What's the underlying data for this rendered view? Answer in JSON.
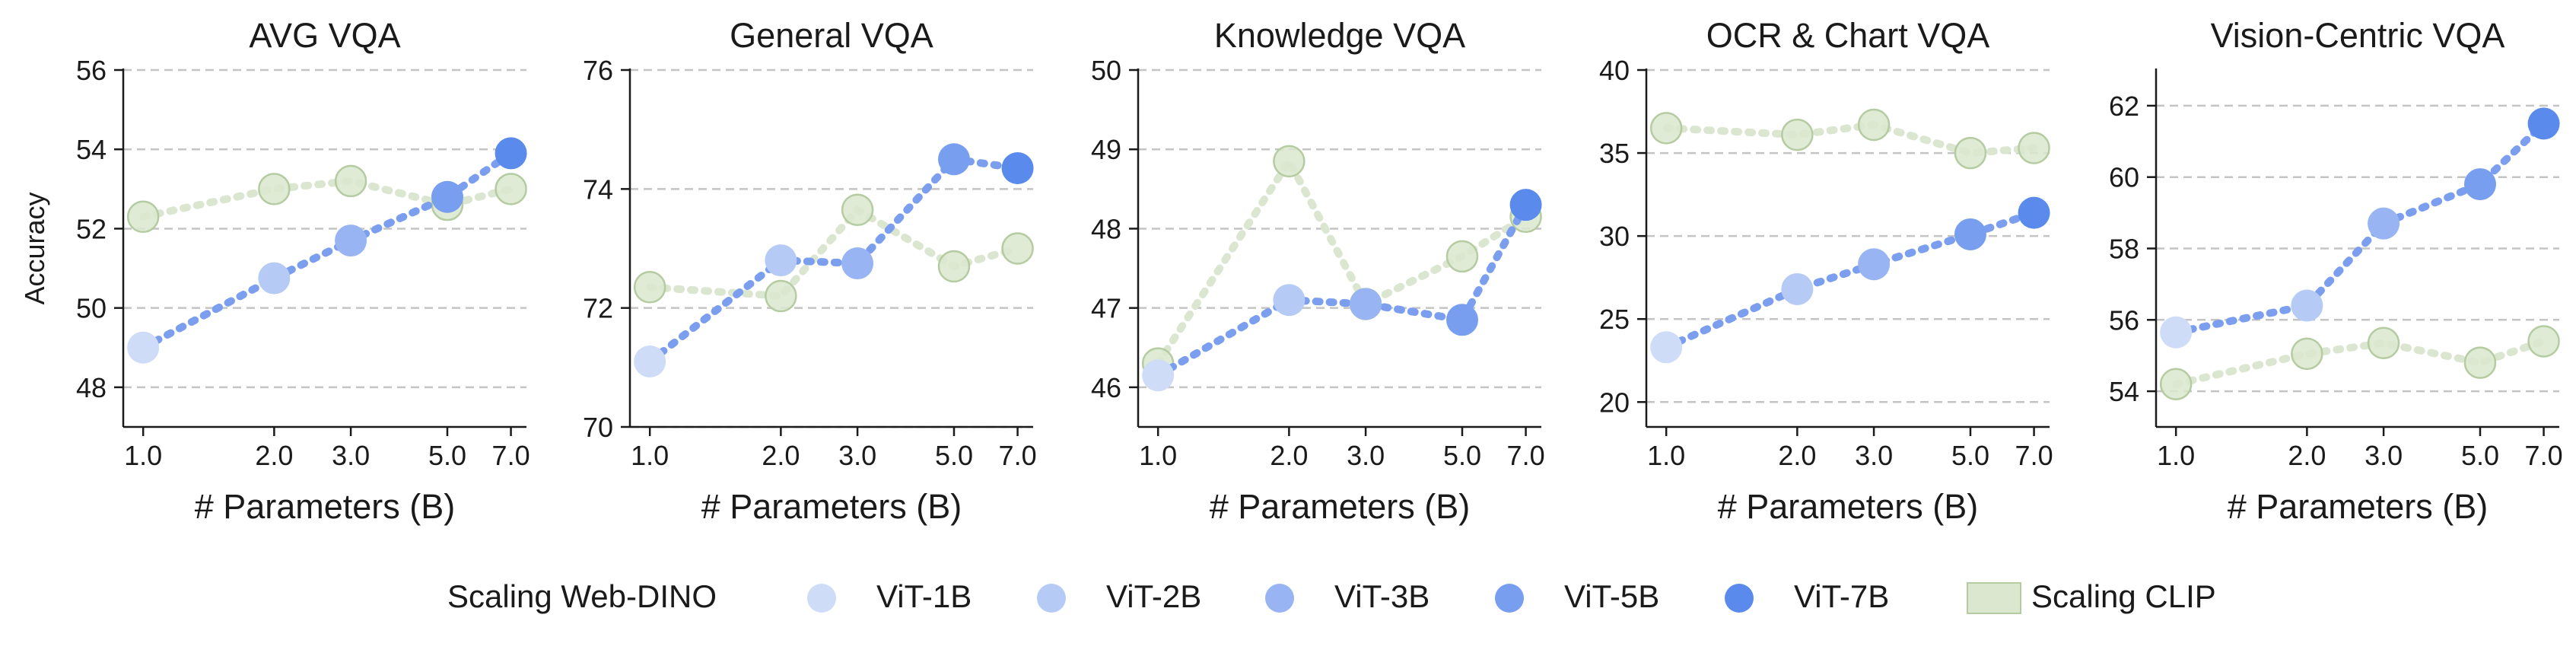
{
  "chart_data": [
    {
      "type": "line",
      "title": "AVG VQA",
      "xlabel": "# Parameters (B)",
      "ylabel": "Accuracy",
      "x_scale": "log",
      "xlim": [
        0.9,
        7.6
      ],
      "ylim": [
        47,
        56
      ],
      "xticks": [
        1.0,
        2.0,
        3.0,
        5.0,
        7.0
      ],
      "xtick_labels": [
        "1.0",
        "2.0",
        "3.0",
        "5.0",
        "7.0"
      ],
      "yticks": [
        48,
        50,
        52,
        54,
        56
      ],
      "ytick_labels": [
        "48",
        "50",
        "52",
        "54",
        "56"
      ],
      "grid": "y-dashed",
      "series": [
        {
          "name": "Scaling Web-DINO",
          "x": [
            1.0,
            2.0,
            3.0,
            5.0,
            7.0
          ],
          "y": [
            49.0,
            50.75,
            51.7,
            52.8,
            53.9
          ]
        },
        {
          "name": "Scaling CLIP",
          "x": [
            1.0,
            2.0,
            3.0,
            5.0,
            7.0
          ],
          "y": [
            52.3,
            53.0,
            53.2,
            52.6,
            53.0
          ]
        }
      ]
    },
    {
      "type": "line",
      "title": "General VQA",
      "xlabel": "# Parameters (B)",
      "ylabel": "",
      "x_scale": "log",
      "xlim": [
        0.9,
        7.6
      ],
      "ylim": [
        70,
        76
      ],
      "xticks": [
        1.0,
        2.0,
        3.0,
        5.0,
        7.0
      ],
      "xtick_labels": [
        "1.0",
        "2.0",
        "3.0",
        "5.0",
        "7.0"
      ],
      "yticks": [
        70,
        72,
        74,
        76
      ],
      "ytick_labels": [
        "70",
        "72",
        "74",
        "76"
      ],
      "grid": "y-dashed",
      "series": [
        {
          "name": "Scaling Web-DINO",
          "x": [
            1.0,
            2.0,
            3.0,
            5.0,
            7.0
          ],
          "y": [
            71.1,
            72.8,
            72.75,
            74.5,
            74.35
          ]
        },
        {
          "name": "Scaling CLIP",
          "x": [
            1.0,
            2.0,
            3.0,
            5.0,
            7.0
          ],
          "y": [
            72.35,
            72.2,
            73.65,
            72.7,
            73.0
          ]
        }
      ]
    },
    {
      "type": "line",
      "title": "Knowledge VQA",
      "xlabel": "# Parameters (B)",
      "ylabel": "",
      "x_scale": "log",
      "xlim": [
        0.9,
        7.6
      ],
      "ylim": [
        45.5,
        50
      ],
      "xticks": [
        1.0,
        2.0,
        3.0,
        5.0,
        7.0
      ],
      "xtick_labels": [
        "1.0",
        "2.0",
        "3.0",
        "5.0",
        "7.0"
      ],
      "yticks": [
        46,
        47,
        48,
        49,
        50
      ],
      "ytick_labels": [
        "46",
        "47",
        "48",
        "49",
        "50"
      ],
      "grid": "y-dashed",
      "series": [
        {
          "name": "Scaling Web-DINO",
          "x": [
            1.0,
            2.0,
            3.0,
            5.0,
            7.0
          ],
          "y": [
            46.15,
            47.1,
            47.05,
            46.85,
            48.3
          ]
        },
        {
          "name": "Scaling CLIP",
          "x": [
            1.0,
            2.0,
            3.0,
            5.0,
            7.0
          ],
          "y": [
            46.3,
            48.85,
            47.05,
            47.65,
            48.15
          ]
        }
      ]
    },
    {
      "type": "line",
      "title": "OCR & Chart VQA",
      "xlabel": "# Parameters (B)",
      "ylabel": "",
      "x_scale": "log",
      "xlim": [
        0.9,
        7.6
      ],
      "ylim": [
        18.5,
        40
      ],
      "xticks": [
        1.0,
        2.0,
        3.0,
        5.0,
        7.0
      ],
      "xtick_labels": [
        "1.0",
        "2.0",
        "3.0",
        "5.0",
        "7.0"
      ],
      "yticks": [
        20,
        25,
        30,
        35,
        40
      ],
      "ytick_labels": [
        "20",
        "25",
        "30",
        "35",
        "40"
      ],
      "grid": "y-dashed",
      "series": [
        {
          "name": "Scaling Web-DINO",
          "x": [
            1.0,
            2.0,
            3.0,
            5.0,
            7.0
          ],
          "y": [
            23.3,
            26.8,
            28.3,
            30.1,
            31.4
          ]
        },
        {
          "name": "Scaling CLIP",
          "x": [
            1.0,
            2.0,
            3.0,
            5.0,
            7.0
          ],
          "y": [
            36.5,
            36.1,
            36.7,
            35.0,
            35.3
          ]
        }
      ]
    },
    {
      "type": "line",
      "title": "Vision-Centric VQA",
      "xlabel": "# Parameters (B)",
      "ylabel": "",
      "x_scale": "log",
      "xlim": [
        0.9,
        7.6
      ],
      "ylim": [
        53,
        63
      ],
      "xticks": [
        1.0,
        2.0,
        3.0,
        5.0,
        7.0
      ],
      "xtick_labels": [
        "1.0",
        "2.0",
        "3.0",
        "5.0",
        "7.0"
      ],
      "yticks": [
        54,
        56,
        58,
        60,
        62
      ],
      "ytick_labels": [
        "54",
        "56",
        "58",
        "60",
        "62"
      ],
      "grid": "y-dashed",
      "series": [
        {
          "name": "Scaling Web-DINO",
          "x": [
            1.0,
            2.0,
            3.0,
            5.0,
            7.0
          ],
          "y": [
            55.65,
            56.4,
            58.7,
            59.8,
            61.5
          ]
        },
        {
          "name": "Scaling CLIP",
          "x": [
            1.0,
            2.0,
            3.0,
            5.0,
            7.0
          ],
          "y": [
            54.2,
            55.05,
            55.35,
            54.8,
            55.4
          ]
        }
      ]
    }
  ],
  "legend": {
    "placement": "bottom-center",
    "group_label": "Scaling Web-DINO",
    "items": [
      {
        "label": "ViT-1B",
        "color": "#cfdcf7"
      },
      {
        "label": "ViT-2B",
        "color": "#b5cbf5"
      },
      {
        "label": "ViT-3B",
        "color": "#98b4f3"
      },
      {
        "label": "ViT-5B",
        "color": "#789ef0"
      },
      {
        "label": "ViT-7B",
        "color": "#5b8aed"
      }
    ],
    "clip_label": "Scaling CLIP"
  },
  "colors": {
    "dino_line": "#7b9fee",
    "dino_points": [
      "#cfdcf7",
      "#b5cbf5",
      "#98b4f3",
      "#789ef0",
      "#5b8aed"
    ],
    "clip_fill": "#dbe8cf",
    "clip_edge": "#b5cca2",
    "clip_line": "#dbe6d0",
    "grid": "#c4c4c4",
    "axis": "#1a1a1a"
  }
}
